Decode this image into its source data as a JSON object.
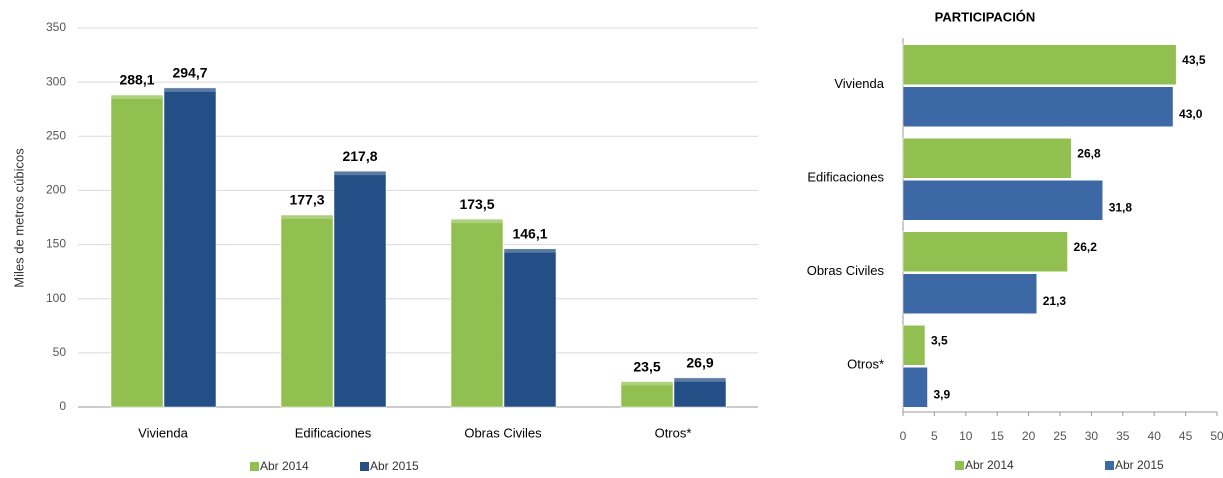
{
  "chart_data": [
    {
      "type": "bar",
      "y_label": "Miles de metros cúbicos",
      "categories": [
        "Vivienda",
        "Edificaciones",
        "Obras Civiles",
        "Otros*"
      ],
      "series": [
        {
          "name": "Abr 2014",
          "color": "#92c050",
          "values": [
            288.1,
            177.3,
            173.5,
            23.5
          ],
          "value_labels": [
            "288,1",
            "177,3",
            "173,5",
            "23,5"
          ]
        },
        {
          "name": "Abr 2015",
          "color": "#234f86",
          "values": [
            294.7,
            217.8,
            146.1,
            26.9
          ],
          "value_labels": [
            "294,7",
            "217,8",
            "146,1",
            "26,9"
          ]
        }
      ],
      "ylim": [
        0,
        350
      ],
      "yticks": [
        0,
        50,
        100,
        150,
        200,
        250,
        300,
        350
      ],
      "grid": true,
      "legend": "bottom"
    },
    {
      "type": "barh",
      "title": "PARTICIPACIÓN",
      "categories": [
        "Vivienda",
        "Edificaciones",
        "Obras Civiles",
        "Otros*"
      ],
      "series": [
        {
          "name": "Abr 2014",
          "color": "#92c050",
          "values": [
            43.5,
            26.8,
            26.2,
            3.5
          ],
          "value_labels": [
            "43,5",
            "26,8",
            "26,2",
            "3,5"
          ]
        },
        {
          "name": "Abr 2015",
          "color": "#3c69a6",
          "values": [
            43.0,
            31.8,
            21.3,
            3.9
          ],
          "value_labels": [
            "43,0",
            "31,8",
            "21,3",
            "3,9"
          ]
        }
      ],
      "xlim": [
        0,
        50
      ],
      "xticks": [
        0,
        5,
        10,
        15,
        20,
        25,
        30,
        35,
        40,
        45,
        50
      ],
      "grid": false,
      "legend": "bottom"
    }
  ]
}
